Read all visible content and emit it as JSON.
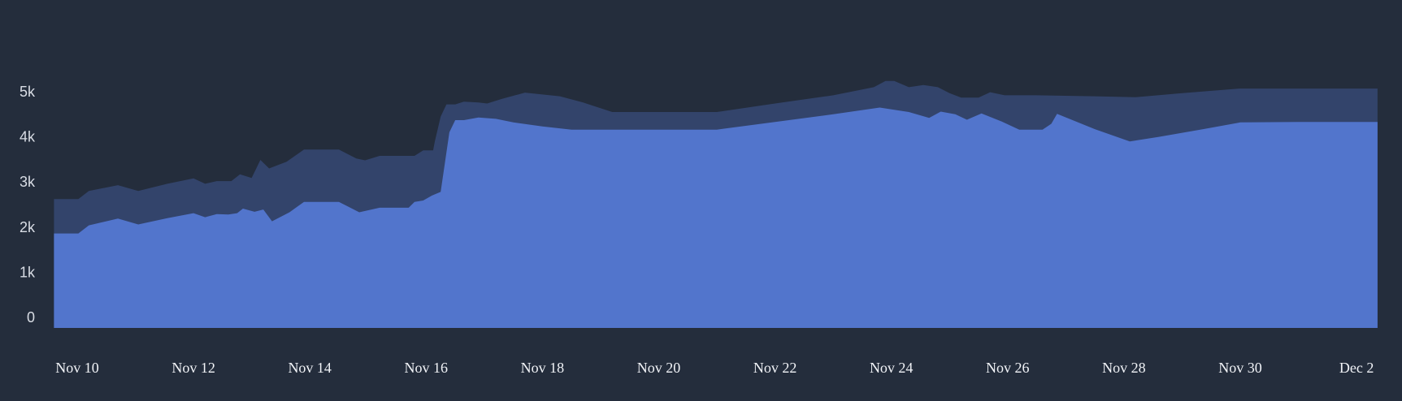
{
  "chart_data": {
    "type": "area",
    "title": "",
    "xlabel": "",
    "ylabel": "",
    "ylim": [
      -200,
      5400
    ],
    "grid": false,
    "yticks": [
      {
        "value": 0,
        "label": "0"
      },
      {
        "value": 1000,
        "label": "1k"
      },
      {
        "value": 2000,
        "label": "2k"
      },
      {
        "value": 3000,
        "label": "3k"
      },
      {
        "value": 4000,
        "label": "4k"
      },
      {
        "value": 5000,
        "label": "5k"
      }
    ],
    "xticks": [
      {
        "x": 0,
        "label": "Nov 10"
      },
      {
        "x": 2,
        "label": "Nov 12"
      },
      {
        "x": 4,
        "label": "Nov 14"
      },
      {
        "x": 6,
        "label": "Nov 16"
      },
      {
        "x": 8,
        "label": "Nov 18"
      },
      {
        "x": 10,
        "label": "Nov 20"
      },
      {
        "x": 12,
        "label": "Nov 22"
      },
      {
        "x": 14,
        "label": "Nov 24"
      },
      {
        "x": 16,
        "label": "Nov 26"
      },
      {
        "x": 18,
        "label": "Nov 28"
      },
      {
        "x": 20,
        "label": "Nov 30"
      },
      {
        "x": 22,
        "label": "Dec 2"
      }
    ],
    "colors": {
      "background": "#242d3c",
      "upper_area": "#33446b",
      "lower_area": "#5275cc",
      "ytick": "#d9dde5",
      "xtick": "#f1f3f7"
    },
    "series": [
      {
        "key": "upper",
        "points": [
          [
            -0.4,
            2620
          ],
          [
            0.02,
            2620
          ],
          [
            0.2,
            2800
          ],
          [
            0.7,
            2930
          ],
          [
            1.05,
            2800
          ],
          [
            1.55,
            2960
          ],
          [
            2.0,
            3080
          ],
          [
            2.2,
            2960
          ],
          [
            2.4,
            3020
          ],
          [
            2.65,
            3020
          ],
          [
            2.8,
            3170
          ],
          [
            3.0,
            3090
          ],
          [
            3.15,
            3490
          ],
          [
            3.3,
            3300
          ],
          [
            3.6,
            3450
          ],
          [
            3.9,
            3720
          ],
          [
            4.15,
            3720
          ],
          [
            4.5,
            3720
          ],
          [
            4.8,
            3520
          ],
          [
            4.95,
            3480
          ],
          [
            5.2,
            3580
          ],
          [
            5.5,
            3580
          ],
          [
            5.8,
            3580
          ],
          [
            5.95,
            3700
          ],
          [
            6.12,
            3700
          ],
          [
            6.15,
            3900
          ],
          [
            6.25,
            4450
          ],
          [
            6.35,
            4720
          ],
          [
            6.5,
            4720
          ],
          [
            6.65,
            4780
          ],
          [
            6.9,
            4760
          ],
          [
            7.05,
            4740
          ],
          [
            7.3,
            4840
          ],
          [
            7.7,
            4980
          ],
          [
            8.3,
            4900
          ],
          [
            8.7,
            4760
          ],
          [
            9.2,
            4550
          ],
          [
            10.0,
            4550
          ],
          [
            11.0,
            4550
          ],
          [
            12.0,
            4740
          ],
          [
            13.0,
            4920
          ],
          [
            13.7,
            5100
          ],
          [
            13.9,
            5240
          ],
          [
            14.05,
            5240
          ],
          [
            14.3,
            5100
          ],
          [
            14.55,
            5150
          ],
          [
            14.8,
            5100
          ],
          [
            15.0,
            4970
          ],
          [
            15.2,
            4870
          ],
          [
            15.5,
            4870
          ],
          [
            15.7,
            4990
          ],
          [
            15.95,
            4920
          ],
          [
            16.5,
            4920
          ],
          [
            17.5,
            4900
          ],
          [
            18.2,
            4880
          ],
          [
            19.0,
            4970
          ],
          [
            20.0,
            5070
          ],
          [
            21.0,
            5070
          ],
          [
            22.0,
            5070
          ],
          [
            22.36,
            5070
          ]
        ]
      },
      {
        "key": "lower",
        "points": [
          [
            -0.4,
            1860
          ],
          [
            0.02,
            1860
          ],
          [
            0.2,
            2040
          ],
          [
            0.7,
            2190
          ],
          [
            1.05,
            2060
          ],
          [
            1.55,
            2200
          ],
          [
            2.0,
            2310
          ],
          [
            2.2,
            2220
          ],
          [
            2.4,
            2290
          ],
          [
            2.6,
            2280
          ],
          [
            2.75,
            2310
          ],
          [
            2.85,
            2410
          ],
          [
            3.05,
            2340
          ],
          [
            3.2,
            2390
          ],
          [
            3.35,
            2130
          ],
          [
            3.65,
            2330
          ],
          [
            3.9,
            2560
          ],
          [
            4.5,
            2560
          ],
          [
            4.85,
            2330
          ],
          [
            5.2,
            2430
          ],
          [
            5.5,
            2430
          ],
          [
            5.7,
            2430
          ],
          [
            5.8,
            2560
          ],
          [
            5.95,
            2590
          ],
          [
            6.1,
            2700
          ],
          [
            6.25,
            2780
          ],
          [
            6.4,
            4100
          ],
          [
            6.5,
            4370
          ],
          [
            6.65,
            4370
          ],
          [
            6.9,
            4430
          ],
          [
            7.2,
            4400
          ],
          [
            7.5,
            4320
          ],
          [
            8.0,
            4230
          ],
          [
            8.5,
            4160
          ],
          [
            9.0,
            4160
          ],
          [
            10.0,
            4160
          ],
          [
            11.0,
            4160
          ],
          [
            12.0,
            4330
          ],
          [
            13.0,
            4500
          ],
          [
            13.8,
            4650
          ],
          [
            14.3,
            4550
          ],
          [
            14.65,
            4420
          ],
          [
            14.85,
            4560
          ],
          [
            15.1,
            4500
          ],
          [
            15.3,
            4380
          ],
          [
            15.55,
            4520
          ],
          [
            15.9,
            4340
          ],
          [
            16.2,
            4160
          ],
          [
            16.6,
            4160
          ],
          [
            16.75,
            4290
          ],
          [
            16.85,
            4510
          ],
          [
            17.5,
            4170
          ],
          [
            18.1,
            3900
          ],
          [
            18.6,
            4000
          ],
          [
            19.4,
            4180
          ],
          [
            20.0,
            4320
          ],
          [
            21.0,
            4330
          ],
          [
            22.0,
            4330
          ],
          [
            22.36,
            4330
          ]
        ]
      }
    ]
  }
}
